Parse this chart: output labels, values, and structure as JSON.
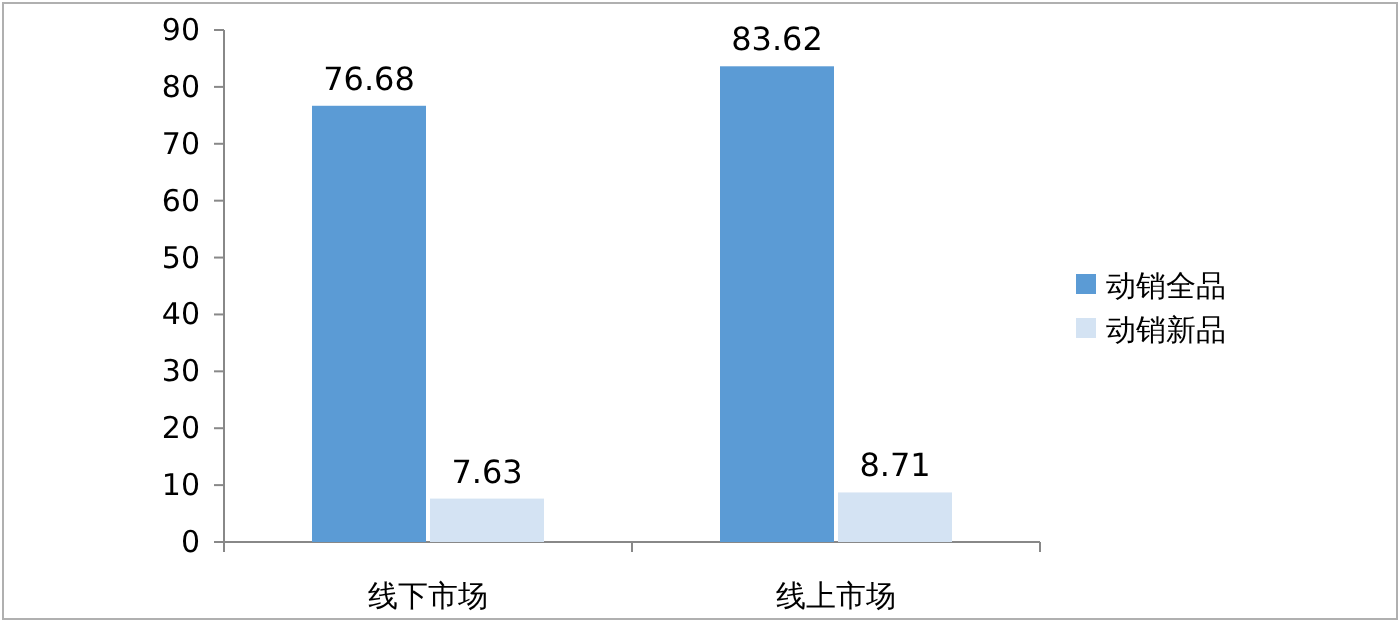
{
  "chart_data": {
    "type": "bar",
    "categories": [
      "线下市场",
      "线上市场"
    ],
    "series": [
      {
        "name": "动销全品",
        "color": "#5b9bd5",
        "values": [
          76.68,
          83.62
        ]
      },
      {
        "name": "动销新品",
        "color": "#d4e3f3",
        "values": [
          7.63,
          8.71
        ]
      }
    ],
    "ylim": [
      0,
      90
    ],
    "yticks": [
      0,
      10,
      20,
      30,
      40,
      50,
      60,
      70,
      80,
      90
    ],
    "data_labels": true,
    "legend": "right",
    "grid": false
  }
}
